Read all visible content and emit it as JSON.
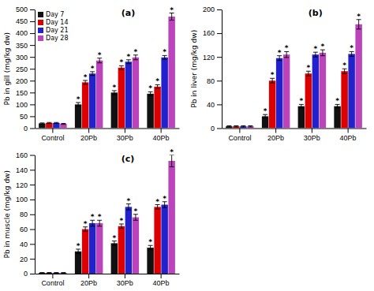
{
  "chart_data": [
    {
      "type": "bar",
      "title": "(a)",
      "ylabel": "Pb in gill (mg/kg dw)",
      "categories": [
        "Control",
        "20Pb",
        "30Pb",
        "40Pb"
      ],
      "series": [
        {
          "name": "Day 7",
          "color": "#111111",
          "values": [
            20,
            100,
            150,
            145
          ],
          "errors": [
            2,
            8,
            8,
            8
          ],
          "annotations": [
            null,
            "*",
            "*",
            "*"
          ]
        },
        {
          "name": "Day 14",
          "color": "#dd0000",
          "values": [
            22,
            193,
            255,
            175
          ],
          "errors": [
            2,
            8,
            8,
            8
          ],
          "annotations": [
            null,
            "*",
            "*",
            "*"
          ]
        },
        {
          "name": "Day 21",
          "color": "#2222cc",
          "values": [
            22,
            230,
            280,
            298
          ],
          "errors": [
            2,
            8,
            8,
            8
          ],
          "annotations": [
            null,
            "*",
            "*",
            "*"
          ]
        },
        {
          "name": "Day 28",
          "color": "#bb44bb",
          "values": [
            18,
            285,
            298,
            470
          ],
          "errors": [
            2,
            10,
            10,
            15
          ],
          "annotations": [
            null,
            "*",
            "*",
            "*"
          ]
        }
      ],
      "ylim": [
        0,
        500
      ],
      "yticks": [
        0,
        50,
        100,
        150,
        200,
        250,
        300,
        350,
        400,
        450,
        500
      ],
      "legend": "upper left"
    },
    {
      "type": "bar",
      "title": "(b)",
      "ylabel": "Pb in liver (mg/kg dw)",
      "categories": [
        "Control",
        "20Pb",
        "30Pb",
        "40Pb"
      ],
      "series": [
        {
          "color": "#111111",
          "values": [
            3,
            20,
            37,
            37
          ],
          "errors": [
            1,
            3,
            3,
            3
          ],
          "annotations": [
            null,
            "*",
            "*",
            "*"
          ]
        },
        {
          "color": "#dd0000",
          "values": [
            3,
            80,
            92,
            96
          ],
          "errors": [
            1,
            4,
            4,
            4
          ],
          "annotations": [
            null,
            "*",
            "*",
            "*"
          ]
        },
        {
          "color": "#2222cc",
          "values": [
            3,
            118,
            124,
            125
          ],
          "errors": [
            1,
            4,
            4,
            4
          ],
          "annotations": [
            null,
            "*",
            "*",
            "*"
          ]
        },
        {
          "color": "#bb44bb",
          "values": [
            3,
            124,
            127,
            175
          ],
          "errors": [
            1,
            5,
            5,
            8
          ],
          "annotations": [
            null,
            "*",
            "*",
            "*"
          ]
        }
      ],
      "ylim": [
        0,
        200
      ],
      "yticks": [
        0,
        40,
        80,
        120,
        160,
        200
      ]
    },
    {
      "type": "bar",
      "title": "(c)",
      "ylabel": "Pb in muscle (mg/kg dw)",
      "categories": [
        "Control",
        "20Pb",
        "30Pb",
        "40Pb"
      ],
      "series": [
        {
          "color": "#111111",
          "values": [
            1,
            30,
            41,
            35
          ],
          "errors": [
            0.5,
            3,
            3,
            3
          ],
          "annotations": [
            null,
            "*",
            "*",
            "*"
          ]
        },
        {
          "color": "#dd0000",
          "values": [
            1,
            60,
            64,
            90
          ],
          "errors": [
            0.5,
            3,
            3,
            3
          ],
          "annotations": [
            null,
            "*",
            "*",
            "*"
          ]
        },
        {
          "color": "#2222cc",
          "values": [
            1,
            68,
            90,
            93
          ],
          "errors": [
            0.5,
            4,
            4,
            4
          ],
          "annotations": [
            null,
            "*",
            "*",
            "*"
          ]
        },
        {
          "color": "#bb44bb",
          "values": [
            1,
            68,
            76,
            152
          ],
          "errors": [
            0.5,
            4,
            4,
            8
          ],
          "annotations": [
            null,
            "*",
            "*",
            "*"
          ]
        }
      ],
      "ylim": [
        0,
        160
      ],
      "yticks": [
        0,
        20,
        40,
        60,
        80,
        100,
        120,
        140,
        160
      ]
    }
  ]
}
